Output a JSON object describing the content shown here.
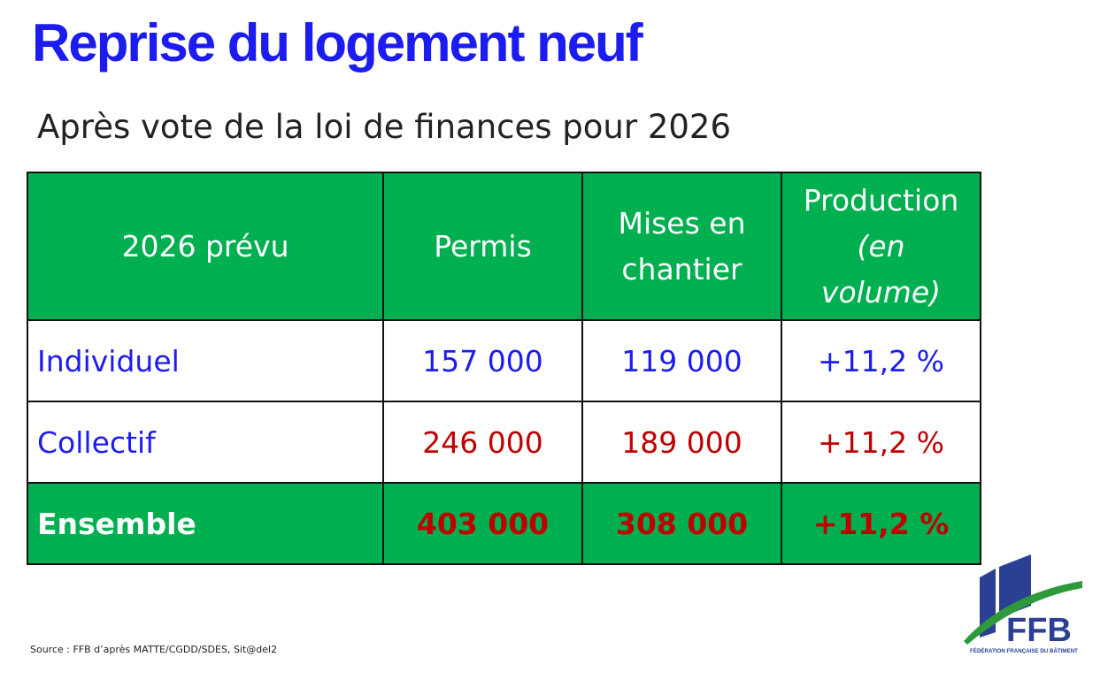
{
  "header": {
    "title": "Reprise du logement neuf",
    "subtitle": "Après vote de la loi de finances pour 2026"
  },
  "table": {
    "columns": [
      "2026 prévu",
      "Permis",
      "Mises en chantier",
      [
        "Production",
        "(en volume)"
      ]
    ],
    "rows": [
      [
        "Individuel",
        "157 000",
        "119 000",
        "+11,2 %"
      ],
      [
        "Collectif",
        "246 000",
        "189 000",
        "+11,2 %"
      ],
      [
        "Ensemble",
        "403 000",
        "308 000",
        "+11,2 %"
      ]
    ]
  },
  "footer": {
    "source": "Source : FFB d’après MATTE/CGDD/SDES, Sit@del2"
  },
  "logo": {
    "acronym": "FFB",
    "name": "FÉDÉRATION FRANÇAISE DU BÂTIMENT"
  }
}
